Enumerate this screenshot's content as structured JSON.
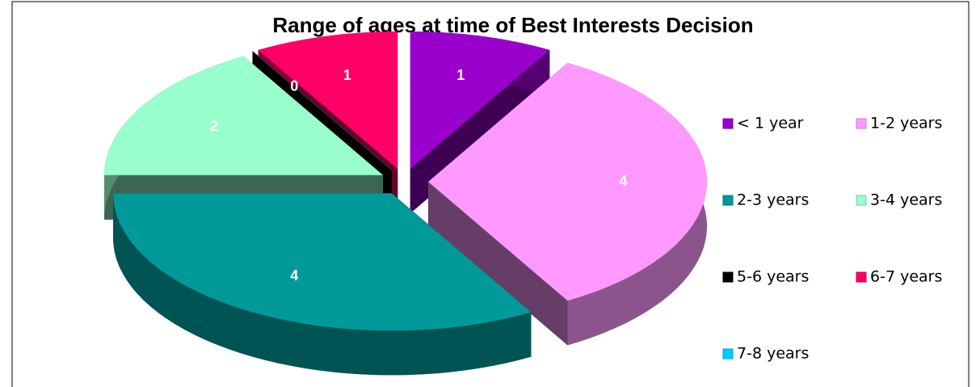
{
  "chart_data": {
    "type": "pie3d",
    "title": "Range of ages at time of Best Interests Decision",
    "categories": [
      "< 1 year",
      "1-2 years",
      "2-3 years",
      "3-4 years",
      "5-6 years",
      "6-7 years",
      "7-8 years"
    ],
    "values": [
      1,
      4,
      4,
      2,
      0,
      1,
      null
    ],
    "colors": [
      "#9900cc",
      "#ff99ff",
      "#009999",
      "#99ffcc",
      "#000000",
      "#ff0066",
      "#00ccff"
    ],
    "legend": "right"
  }
}
